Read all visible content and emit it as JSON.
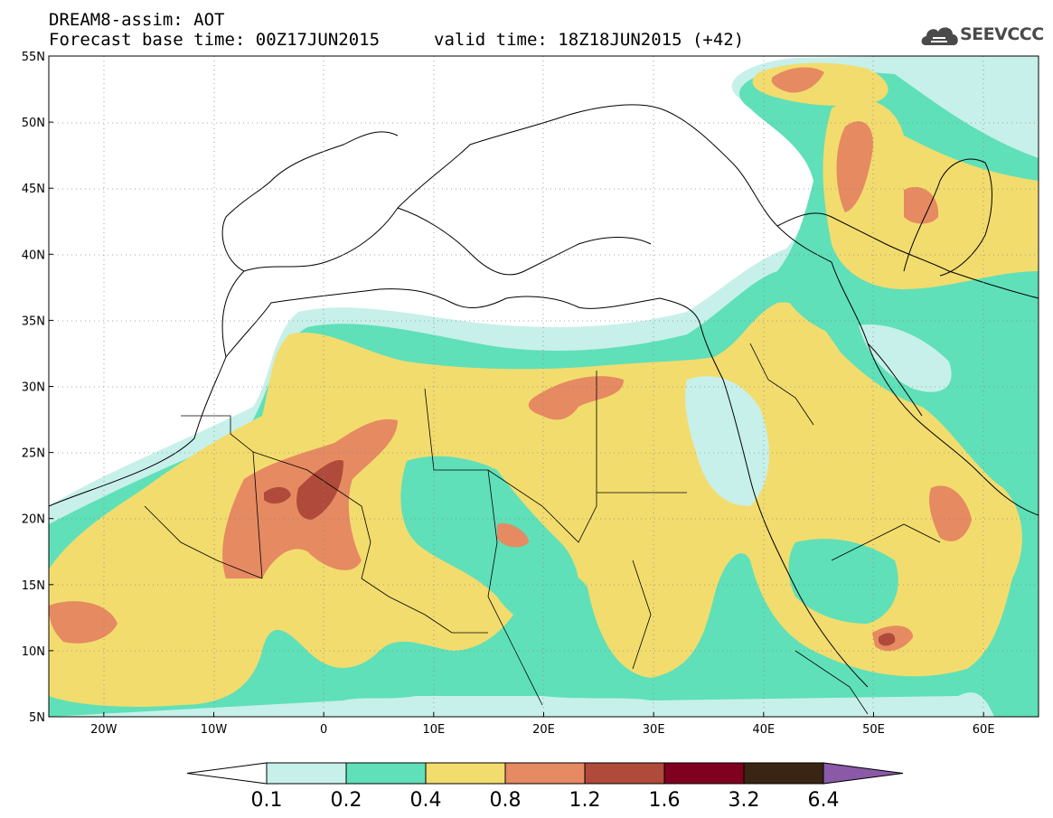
{
  "header": {
    "line1": "DREAM8-assim: AOT",
    "line2": "Forecast base time: 00Z17JUN2015",
    "line3": "valid time: 18Z18JUN2015 (+42)",
    "logo_text": "SEEVCCC"
  },
  "map_data": {
    "variable": "AOT",
    "lon_range": [
      -25,
      65
    ],
    "lat_range": [
      5,
      55
    ],
    "lat_ticks": [
      "55N",
      "50N",
      "45N",
      "40N",
      "35N",
      "30N",
      "25N",
      "20N",
      "15N",
      "10N",
      "5N"
    ],
    "lon_ticks": [
      "20W",
      "10W",
      "0",
      "10E",
      "20E",
      "30E",
      "40E",
      "50E",
      "60E"
    ]
  },
  "colorbar": {
    "labels": [
      "0.1",
      "0.2",
      "0.4",
      "0.8",
      "1.2",
      "1.6",
      "3.2",
      "6.4"
    ],
    "colors": [
      "#c7f0ea",
      "#5fe0b8",
      "#f2dc6e",
      "#e68a62",
      "#b04a3a",
      "#800020",
      "#3a2414",
      "#8a5aa8"
    ],
    "under_color": "#ffffff"
  }
}
